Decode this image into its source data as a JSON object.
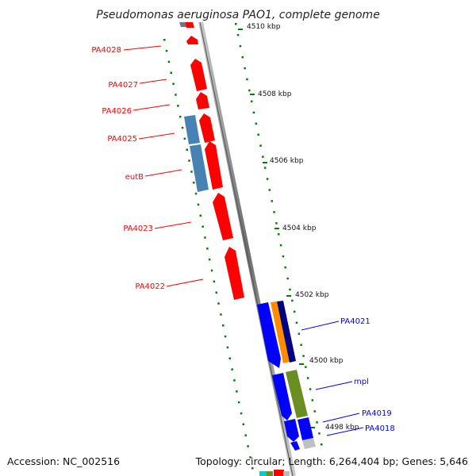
{
  "title": "Pseudomonas aeruginosa PAO1, complete genome",
  "footer": {
    "accession": "Accession: NC_002516",
    "summary": "Topology: circular; Length: 6,264,404 bp; Genes: 5,646"
  },
  "ticks": [
    "4510 kbp",
    "4508 kbp",
    "4506 kbp",
    "4504 kbp",
    "4502 kbp",
    "4500 kbp",
    "4498 kbp"
  ],
  "genes": {
    "left": [
      "PA4028",
      "PA4027",
      "PA4026",
      "PA4025",
      "eutB",
      "PA4023",
      "PA4022"
    ],
    "right": [
      "PA4021",
      "mpl",
      "PA4019",
      "PA4018"
    ]
  },
  "colors": {
    "reverse_strand": "#ff0000",
    "forward_strand": "#0000ff",
    "alt_blue": "#4682b4",
    "orange": "#ff8c00",
    "navy": "#000080",
    "olive": "#6b8e23",
    "axis": "#8a8a8a",
    "dots": "#008000"
  }
}
